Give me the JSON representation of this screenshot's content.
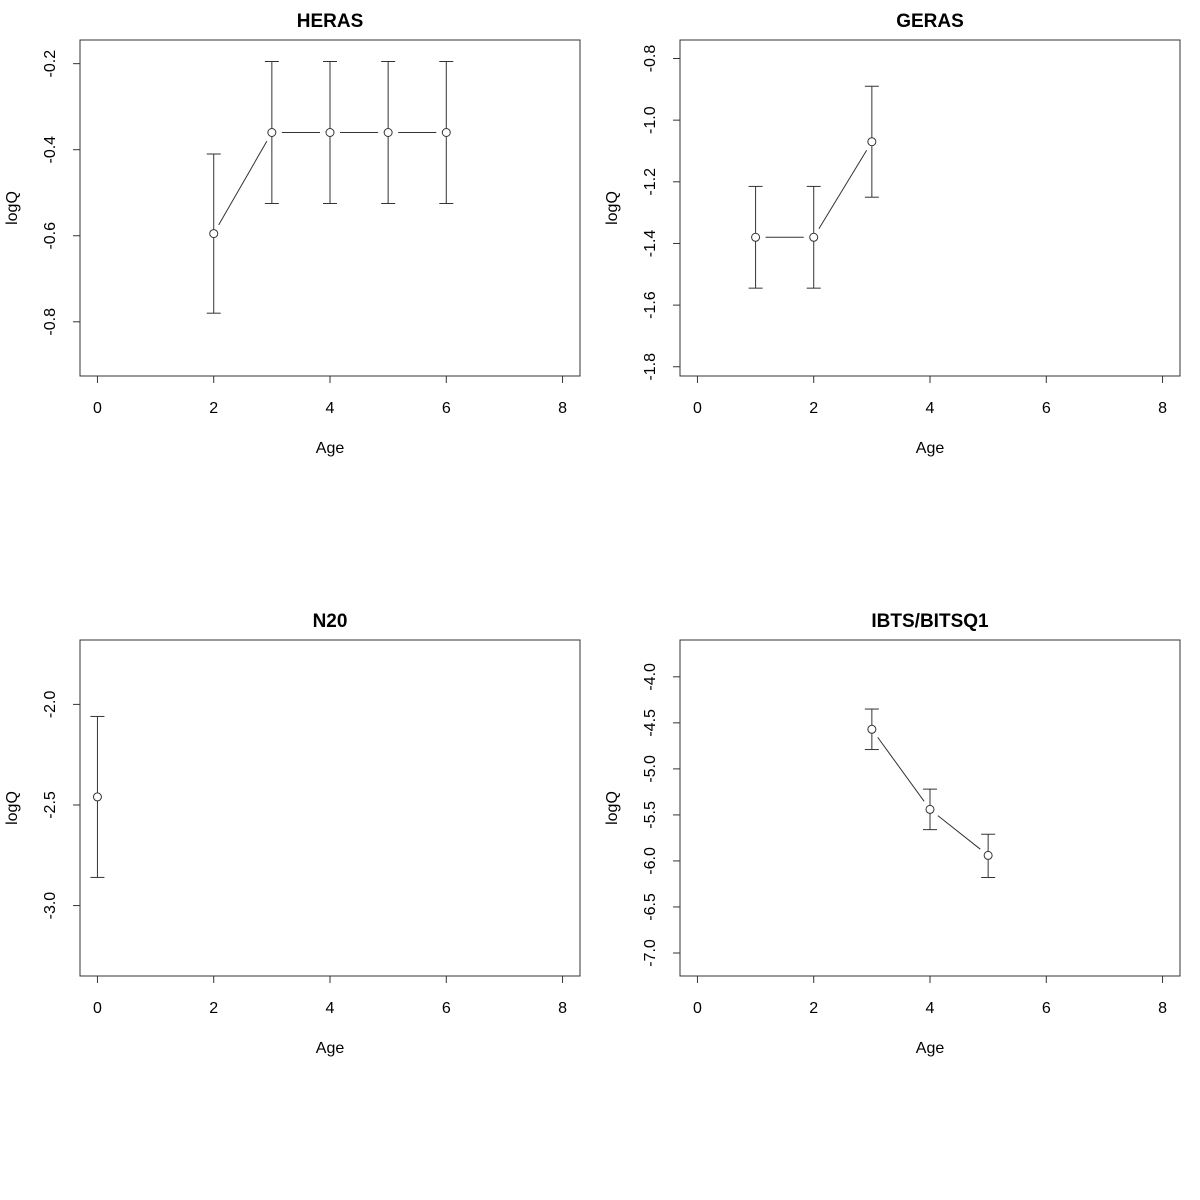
{
  "chart_data": [
    {
      "type": "scatter",
      "title": "HERAS",
      "xlabel": "Age",
      "ylabel": "logQ",
      "xlim": [
        -0.3,
        8.3
      ],
      "ylim": [
        -0.926,
        -0.145
      ],
      "xticks": [
        0,
        2,
        4,
        6,
        8
      ],
      "xtick_labels": [
        "0",
        "2",
        "4",
        "6",
        "8"
      ],
      "yticks": [
        -0.2,
        -0.4,
        -0.6,
        -0.8
      ],
      "ytick_labels": [
        "-0.2",
        "-0.4",
        "-0.6",
        "-0.8"
      ],
      "grid": false,
      "series": [
        {
          "x": [
            2,
            3,
            4,
            5,
            6
          ],
          "y": [
            -0.595,
            -0.36,
            -0.36,
            -0.36,
            -0.36
          ],
          "lower": [
            -0.78,
            -0.525,
            -0.525,
            -0.525,
            -0.525
          ],
          "upper": [
            -0.41,
            -0.195,
            -0.195,
            -0.195,
            -0.195
          ]
        }
      ]
    },
    {
      "type": "scatter",
      "title": "GERAS",
      "xlabel": "Age",
      "ylabel": "logQ",
      "xlim": [
        -0.3,
        8.3
      ],
      "ylim": [
        -1.83,
        -0.74
      ],
      "xticks": [
        0,
        2,
        4,
        6,
        8
      ],
      "xtick_labels": [
        "0",
        "2",
        "4",
        "6",
        "8"
      ],
      "yticks": [
        -0.8,
        -1.0,
        -1.2,
        -1.4,
        -1.6,
        -1.8
      ],
      "ytick_labels": [
        "-0.8",
        "-1.0",
        "-1.2",
        "-1.4",
        "-1.6",
        "-1.8"
      ],
      "grid": false,
      "series": [
        {
          "x": [
            1,
            2,
            3
          ],
          "y": [
            -1.38,
            -1.38,
            -1.07
          ],
          "lower": [
            -1.545,
            -1.545,
            -1.25
          ],
          "upper": [
            -1.215,
            -1.215,
            -0.89
          ]
        }
      ]
    },
    {
      "type": "scatter",
      "title": "N20",
      "xlabel": "Age",
      "ylabel": "logQ",
      "xlim": [
        -0.3,
        8.3
      ],
      "ylim": [
        -3.35,
        -1.68
      ],
      "xticks": [
        0,
        2,
        4,
        6,
        8
      ],
      "xtick_labels": [
        "0",
        "2",
        "4",
        "6",
        "8"
      ],
      "yticks": [
        -2.0,
        -2.5,
        -3.0
      ],
      "ytick_labels": [
        "-2.0",
        "-2.5",
        "-3.0"
      ],
      "grid": false,
      "series": [
        {
          "x": [
            0
          ],
          "y": [
            -2.46
          ],
          "lower": [
            -2.86
          ],
          "upper": [
            -2.06
          ]
        }
      ]
    },
    {
      "type": "scatter",
      "title": "IBTS/BITSQ1",
      "xlabel": "Age",
      "ylabel": "logQ",
      "xlim": [
        -0.3,
        8.3
      ],
      "ylim": [
        -7.25,
        -3.6
      ],
      "xticks": [
        0,
        2,
        4,
        6,
        8
      ],
      "xtick_labels": [
        "0",
        "2",
        "4",
        "6",
        "8"
      ],
      "yticks": [
        -4.0,
        -4.5,
        -5.0,
        -5.5,
        -6.0,
        -6.5,
        -7.0
      ],
      "ytick_labels": [
        "-4.0",
        "-4.5",
        "-5.0",
        "-5.5",
        "-6.0",
        "-6.5",
        "-7.0"
      ],
      "grid": false,
      "series": [
        {
          "x": [
            3,
            4,
            5
          ],
          "y": [
            -4.57,
            -5.44,
            -5.94
          ],
          "lower": [
            -4.79,
            -5.66,
            -6.18
          ],
          "upper": [
            -4.35,
            -5.22,
            -5.71
          ]
        }
      ]
    }
  ]
}
